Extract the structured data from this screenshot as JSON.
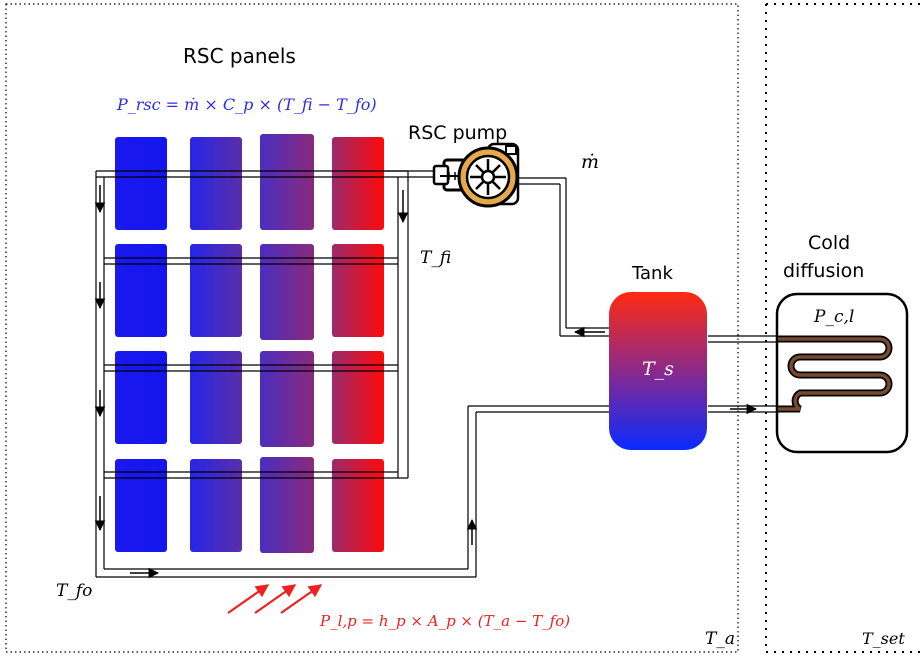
{
  "labels": {
    "rsc_panels": "RSC panels",
    "rsc_pump": "RSC pump",
    "tank": "Tank",
    "cold_diffusion_line1": "Cold",
    "cold_diffusion_line2": "diffusion"
  },
  "equations": {
    "p_rsc": "P_rsc = ṁ × C_p × (T_fi − T_fo)",
    "p_lp": "P_l,p = h_p × A_p × (T_a − T_fo)"
  },
  "symbols": {
    "mdot": "ṁ",
    "t_fi": "T_fi",
    "t_fo": "T_fo",
    "t_s": "T_s",
    "p_cl": "P_c,l",
    "t_a": "T_a",
    "t_set": "T_set"
  },
  "colors": {
    "panel_cold": "#1414ee",
    "panel_mid": "#5a2ea8",
    "panel_hot": "#ff0a0a",
    "equation_blue": "#2b2bea",
    "equation_red": "#ee2020",
    "pump_ring": "#e6a94a",
    "coil": "#5a3a2a"
  },
  "icons": {
    "pump": "pump-icon",
    "radiation": "radiation-arrows-icon",
    "coil": "heat-exchanger-coil-icon"
  }
}
